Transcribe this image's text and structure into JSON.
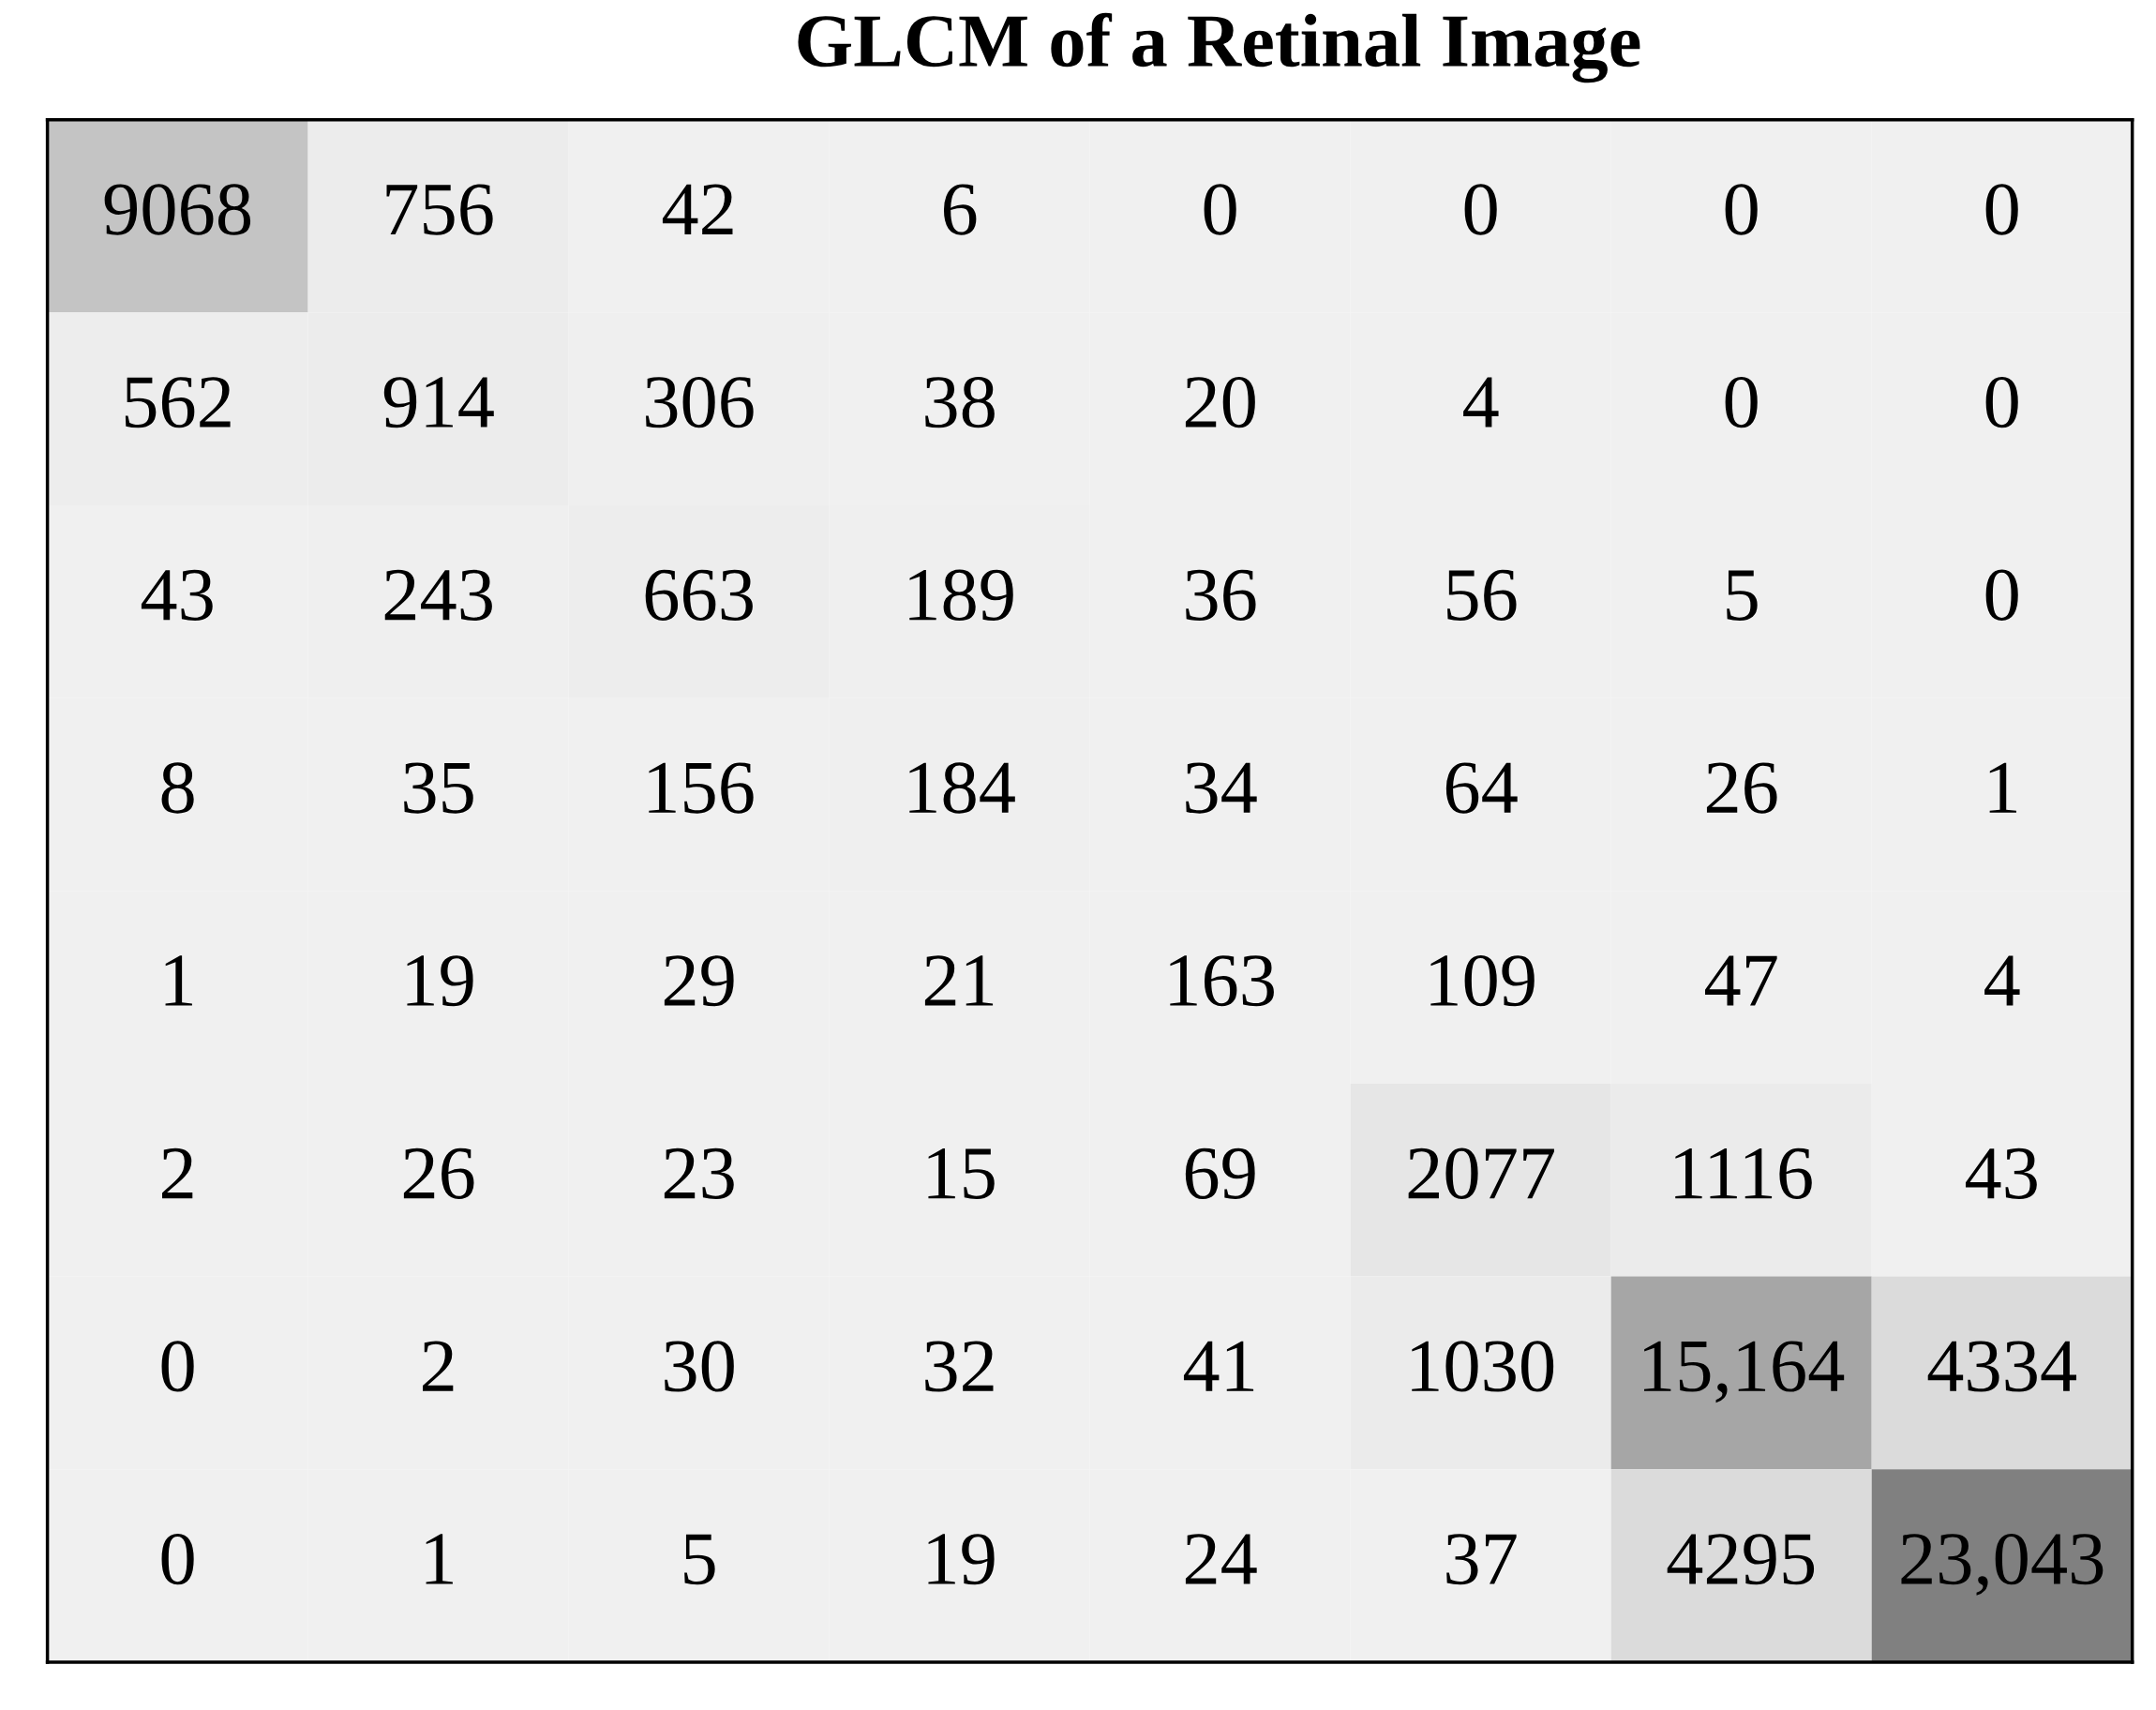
{
  "chart_data": {
    "type": "heatmap",
    "title": "GLCM of a Retinal Image",
    "categories": [
      null,
      null,
      null,
      null,
      null,
      null,
      null,
      null
    ],
    "y_categories": [
      null,
      null,
      null,
      null,
      null,
      null,
      null,
      null
    ],
    "cells": [
      [
        9068,
        756,
        42,
        6,
        0,
        0,
        0,
        0
      ],
      [
        562,
        914,
        306,
        38,
        20,
        4,
        0,
        0
      ],
      [
        43,
        243,
        663,
        189,
        36,
        56,
        5,
        0
      ],
      [
        8,
        35,
        156,
        184,
        34,
        64,
        26,
        1
      ],
      [
        1,
        19,
        29,
        21,
        163,
        109,
        47,
        4
      ],
      [
        2,
        26,
        23,
        15,
        69,
        2077,
        1116,
        43
      ],
      [
        0,
        2,
        30,
        32,
        41,
        1030,
        15164,
        4334
      ],
      [
        0,
        1,
        5,
        19,
        24,
        37,
        4295,
        23043
      ]
    ],
    "cell_labels": [
      [
        "9068",
        "756",
        "42",
        "6",
        "0",
        "0",
        "0",
        "0"
      ],
      [
        "562",
        "914",
        "306",
        "38",
        "20",
        "4",
        "0",
        "0"
      ],
      [
        "43",
        "243",
        "663",
        "189",
        "36",
        "56",
        "5",
        "0"
      ],
      [
        "8",
        "35",
        "156",
        "184",
        "34",
        "64",
        "26",
        "1"
      ],
      [
        "1",
        "19",
        "29",
        "21",
        "163",
        "109",
        "47",
        "4"
      ],
      [
        "2",
        "26",
        "23",
        "15",
        "69",
        "2077",
        "1116",
        "43"
      ],
      [
        "0",
        "2",
        "30",
        "32",
        "41",
        "1030",
        "15,164",
        "4334"
      ],
      [
        "0",
        "1",
        "5",
        "19",
        "24",
        "37",
        "4295",
        "23,043"
      ]
    ]
  }
}
